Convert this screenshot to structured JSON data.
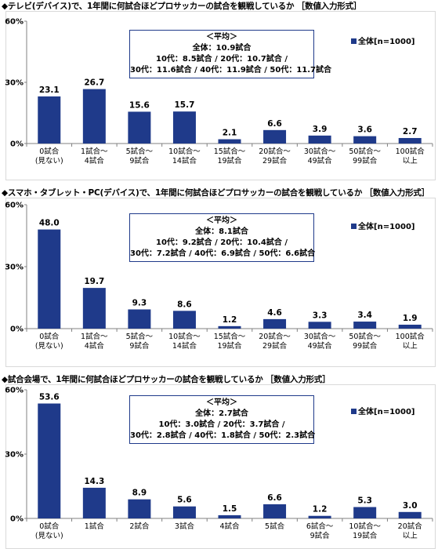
{
  "colors": {
    "bar": "#1f3a8a",
    "axis": "#808080",
    "grid": "#d9d9d9",
    "box_border": "#1f3a8a"
  },
  "legend_label": "全体[n=1000]",
  "chart_data": [
    {
      "type": "bar",
      "title": "◆テレビ(デバイス)で、1年間に何試合ほどプロサッカーの試合を観戦しているか ［数値入力形式］",
      "categories": [
        [
          "0試合",
          "(見ない)"
        ],
        [
          "1試合～",
          "4試合"
        ],
        [
          "5試合～",
          "9試合"
        ],
        [
          "10試合～",
          "14試合"
        ],
        [
          "15試合～",
          "19試合"
        ],
        [
          "20試合～",
          "29試合"
        ],
        [
          "30試合～",
          "49試合"
        ],
        [
          "50試合～",
          "99試合"
        ],
        [
          "100試合",
          "以上"
        ]
      ],
      "series": [
        {
          "name": "全体[n=1000]",
          "values": [
            23.1,
            26.7,
            15.6,
            15.7,
            2.1,
            6.6,
            3.9,
            3.6,
            2.7
          ]
        }
      ],
      "value_labels": [
        "23.1",
        "26.7",
        "15.6",
        "15.7",
        "2.1",
        "6.6",
        "3.9",
        "3.6",
        "2.7"
      ],
      "ylim": [
        0,
        60
      ],
      "yticks": [
        "0%",
        "30%",
        "60%"
      ],
      "legend_position": "top-right",
      "annotation": [
        "＜平均＞",
        "全体：10.9試合",
        "10代：8.5試合 / 20代：10.7試合 /",
        "30代：11.6試合 / 40代：11.9試合 / 50代：11.7試合"
      ]
    },
    {
      "type": "bar",
      "title": "◆スマホ・タブレット・PC(デバイス)で、1年間に何試合ほどプロサッカーの試合を観戦しているか ［数値入力形式］",
      "categories": [
        [
          "0試合",
          "(見ない)"
        ],
        [
          "1試合～",
          "4試合"
        ],
        [
          "5試合～",
          "9試合"
        ],
        [
          "10試合～",
          "14試合"
        ],
        [
          "15試合～",
          "19試合"
        ],
        [
          "20試合～",
          "29試合"
        ],
        [
          "30試合～",
          "49試合"
        ],
        [
          "50試合～",
          "99試合"
        ],
        [
          "100試合",
          "以上"
        ]
      ],
      "series": [
        {
          "name": "全体[n=1000]",
          "values": [
            48.0,
            19.7,
            9.3,
            8.6,
            1.2,
            4.6,
            3.3,
            3.4,
            1.9
          ]
        }
      ],
      "value_labels": [
        "48.0",
        "19.7",
        "9.3",
        "8.6",
        "1.2",
        "4.6",
        "3.3",
        "3.4",
        "1.9"
      ],
      "ylim": [
        0,
        60
      ],
      "yticks": [
        "0%",
        "30%",
        "60%"
      ],
      "legend_position": "top-right",
      "annotation": [
        "＜平均＞",
        "全体：8.1試合",
        "10代：9.2試合 / 20代：10.4試合 /",
        "30代：7.2試合 / 40代：6.9試合 / 50代：6.6試合"
      ]
    },
    {
      "type": "bar",
      "title": "◆試合会場で、1年間に何試合ほどプロサッカーの試合を観戦しているか ［数値入力形式］",
      "categories": [
        [
          "0試合",
          "(見ない)"
        ],
        [
          "1試合"
        ],
        [
          "2試合"
        ],
        [
          "3試合"
        ],
        [
          "4試合"
        ],
        [
          "5試合"
        ],
        [
          "6試合～",
          "9試合"
        ],
        [
          "10試合～",
          "19試合"
        ],
        [
          "20試合",
          "以上"
        ]
      ],
      "series": [
        {
          "name": "全体[n=1000]",
          "values": [
            53.6,
            14.3,
            8.9,
            5.6,
            1.5,
            6.6,
            1.2,
            5.3,
            3.0
          ]
        }
      ],
      "value_labels": [
        "53.6",
        "14.3",
        "8.9",
        "5.6",
        "1.5",
        "6.6",
        "1.2",
        "5.3",
        "3.0"
      ],
      "ylim": [
        0,
        60
      ],
      "yticks": [
        "0%",
        "30%",
        "60%"
      ],
      "legend_position": "top-right",
      "annotation": [
        "＜平均＞",
        "全体：2.7試合",
        "10代：3.0試合 / 20代：3.7試合 /",
        "30代：2.8試合 / 40代：1.8試合 / 50代：2.3試合"
      ]
    }
  ]
}
